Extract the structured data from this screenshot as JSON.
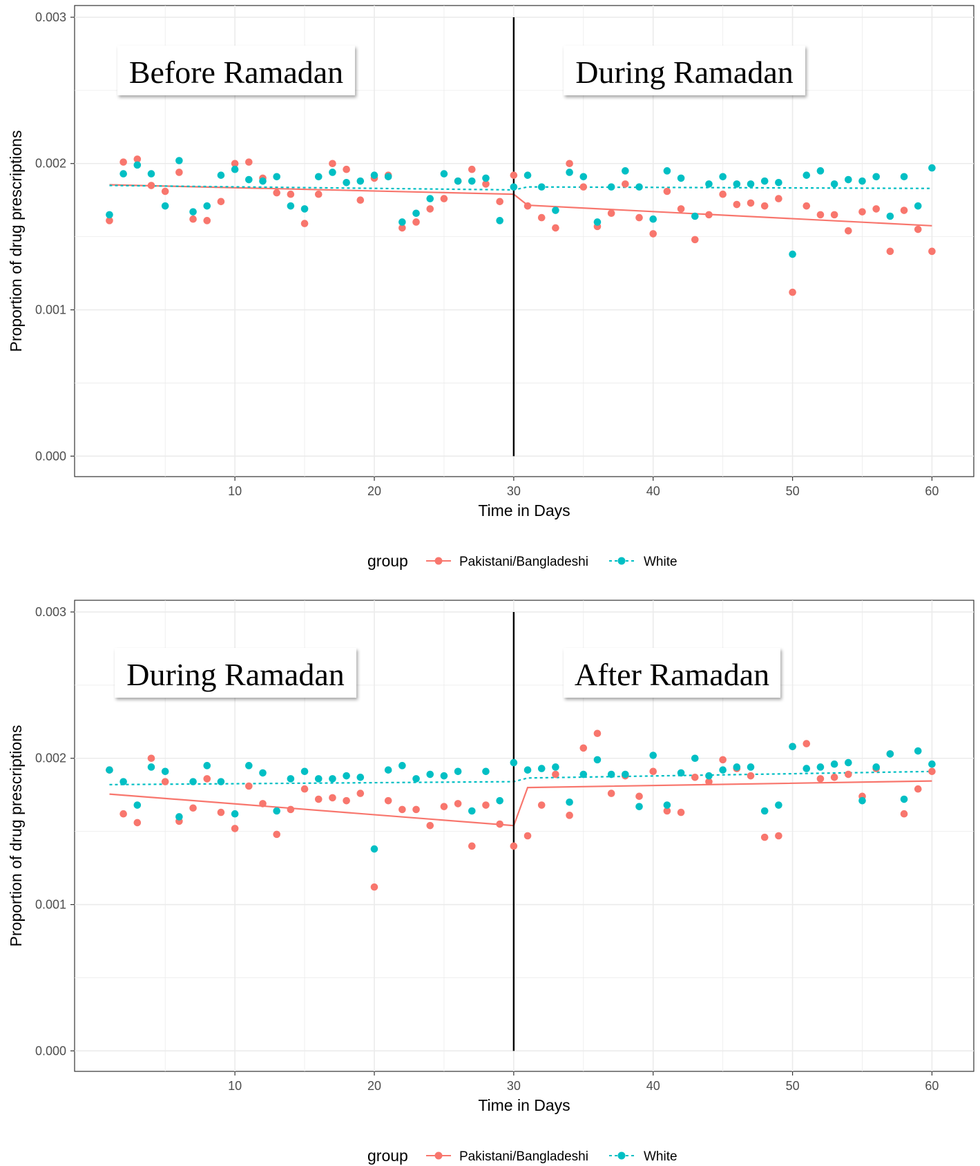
{
  "chart_data": [
    {
      "type": "scatter",
      "title": "",
      "xlabel": "Time in Days",
      "ylabel": "Proportion of drug prescriptions",
      "xlim": [
        -1.5,
        63
      ],
      "ylim": [
        -0.00014,
        0.00308
      ],
      "x_ticks": [
        10,
        20,
        30,
        40,
        50,
        60
      ],
      "y_ticks": [
        0,
        0.001,
        0.002,
        0.003
      ],
      "y_tick_labels": [
        "0.000",
        "0.001",
        "0.002",
        "0.003"
      ],
      "grid": true,
      "intervention_x": 30,
      "panel_labels": {
        "left": "Before Ramadan",
        "right": "During Ramadan"
      },
      "legend": {
        "position": "bottom",
        "title": "group",
        "entries": [
          "Pakistani/Bangladeshi",
          "White"
        ]
      },
      "colors": {
        "Pakistani/Bangladeshi": "#F8766D",
        "White": "#00BFC4"
      },
      "series": [
        {
          "name": "Pakistani/Bangladeshi",
          "x": [
            1,
            2,
            3,
            4,
            5,
            6,
            7,
            8,
            9,
            10,
            11,
            12,
            13,
            14,
            15,
            16,
            17,
            18,
            19,
            20,
            21,
            22,
            23,
            24,
            25,
            26,
            27,
            28,
            29,
            30,
            31,
            32,
            33,
            34,
            35,
            36,
            37,
            38,
            39,
            40,
            41,
            42,
            43,
            44,
            45,
            46,
            47,
            48,
            49,
            50,
            51,
            52,
            53,
            54,
            55,
            56,
            57,
            58,
            59,
            60
          ],
          "y": [
            0.00161,
            0.00201,
            0.00203,
            0.00185,
            0.00181,
            0.00194,
            0.00162,
            0.00161,
            0.00174,
            0.002,
            0.00201,
            0.0019,
            0.0018,
            0.00179,
            0.00159,
            0.00179,
            0.002,
            0.00196,
            0.00175,
            0.0019,
            0.00192,
            0.00156,
            0.0016,
            0.00169,
            0.00176,
            0.00188,
            0.00196,
            0.00186,
            0.00174,
            0.00192,
            0.00171,
            0.00163,
            0.00156,
            0.002,
            0.00184,
            0.00157,
            0.00166,
            0.00186,
            0.00163,
            0.00152,
            0.00181,
            0.00169,
            0.00148,
            0.00165,
            0.00179,
            0.00172,
            0.00173,
            0.00171,
            0.00176,
            0.00112,
            0.00171,
            0.00165,
            0.00165,
            0.00154,
            0.00167,
            0.00169,
            0.0014,
            0.00168,
            0.00155,
            0.0014
          ],
          "fit": [
            [
              1,
              0.001855
            ],
            [
              30,
              0.00179
            ],
            [
              31,
              0.001715
            ],
            [
              60,
              0.001575
            ]
          ]
        },
        {
          "name": "White",
          "x": [
            1,
            2,
            3,
            4,
            5,
            6,
            7,
            8,
            9,
            10,
            11,
            12,
            13,
            14,
            15,
            16,
            17,
            18,
            19,
            20,
            21,
            22,
            23,
            24,
            25,
            26,
            27,
            28,
            29,
            30,
            31,
            32,
            33,
            34,
            35,
            36,
            37,
            38,
            39,
            40,
            41,
            42,
            43,
            44,
            45,
            46,
            47,
            48,
            49,
            50,
            51,
            52,
            53,
            54,
            55,
            56,
            57,
            58,
            59,
            60
          ],
          "y": [
            0.00165,
            0.00193,
            0.00199,
            0.00193,
            0.00171,
            0.00202,
            0.00167,
            0.00171,
            0.00192,
            0.00196,
            0.00189,
            0.00188,
            0.00191,
            0.00171,
            0.00169,
            0.00191,
            0.00194,
            0.00187,
            0.00188,
            0.00192,
            0.00191,
            0.0016,
            0.00166,
            0.00176,
            0.00193,
            0.00188,
            0.00188,
            0.0019,
            0.00161,
            0.00184,
            0.00192,
            0.00184,
            0.00168,
            0.00194,
            0.00191,
            0.0016,
            0.00184,
            0.00195,
            0.00184,
            0.00162,
            0.00195,
            0.0019,
            0.00164,
            0.00186,
            0.00191,
            0.00186,
            0.00186,
            0.00188,
            0.00187,
            0.00138,
            0.00192,
            0.00195,
            0.00186,
            0.00189,
            0.00188,
            0.00191,
            0.00164,
            0.00191,
            0.00171,
            0.00197
          ],
          "fit": [
            [
              1,
              0.00185
            ],
            [
              30,
              0.00182
            ],
            [
              31,
              0.00184
            ],
            [
              60,
              0.00183
            ]
          ]
        }
      ]
    },
    {
      "type": "scatter",
      "title": "",
      "xlabel": "Time in Days",
      "ylabel": "Proportion of drug prescriptions",
      "xlim": [
        -1.5,
        63
      ],
      "ylim": [
        -0.00014,
        0.00308
      ],
      "x_ticks": [
        10,
        20,
        30,
        40,
        50,
        60
      ],
      "y_ticks": [
        0,
        0.001,
        0.002,
        0.003
      ],
      "y_tick_labels": [
        "0.000",
        "0.001",
        "0.002",
        "0.003"
      ],
      "grid": true,
      "intervention_x": 30,
      "panel_labels": {
        "left": "During Ramadan",
        "right": "After Ramadan"
      },
      "legend": {
        "position": "bottom",
        "title": "group",
        "entries": [
          "Pakistani/Bangladeshi",
          "White"
        ]
      },
      "colors": {
        "Pakistani/Bangladeshi": "#F8766D",
        "White": "#00BFC4"
      },
      "series": [
        {
          "name": "Pakistani/Bangladeshi",
          "x": [
            1,
            2,
            3,
            4,
            5,
            6,
            7,
            8,
            9,
            10,
            11,
            12,
            13,
            14,
            15,
            16,
            17,
            18,
            19,
            20,
            21,
            22,
            23,
            24,
            25,
            26,
            27,
            28,
            29,
            30,
            31,
            32,
            33,
            34,
            35,
            36,
            37,
            38,
            39,
            40,
            41,
            42,
            43,
            44,
            45,
            46,
            47,
            48,
            49,
            50,
            51,
            52,
            53,
            54,
            55,
            56,
            57,
            58,
            59,
            60
          ],
          "y": [
            0.00192,
            0.00162,
            0.00156,
            0.002,
            0.00184,
            0.00157,
            0.00166,
            0.00186,
            0.00163,
            0.00152,
            0.00181,
            0.00169,
            0.00148,
            0.00165,
            0.00179,
            0.00172,
            0.00173,
            0.00171,
            0.00176,
            0.00112,
            0.00171,
            0.00165,
            0.00165,
            0.00154,
            0.00167,
            0.00169,
            0.0014,
            0.00168,
            0.00155,
            0.0014,
            0.00147,
            0.00168,
            0.00189,
            0.00161,
            0.00207,
            0.00217,
            0.00176,
            0.00188,
            0.00174,
            0.00191,
            0.00164,
            0.00163,
            0.00187,
            0.00184,
            0.00199,
            0.00193,
            0.00188,
            0.00146,
            0.00147,
            0.00208,
            0.0021,
            0.00186,
            0.00187,
            0.00189,
            0.00174,
            0.00193,
            0.00203,
            0.00162,
            0.00179,
            0.00191
          ],
          "fit": [
            [
              1,
              0.001755
            ],
            [
              30,
              0.00154
            ],
            [
              31,
              0.0018
            ],
            [
              60,
              0.001845
            ]
          ]
        },
        {
          "name": "White",
          "x": [
            1,
            2,
            3,
            4,
            5,
            6,
            7,
            8,
            9,
            10,
            11,
            12,
            13,
            14,
            15,
            16,
            17,
            18,
            19,
            20,
            21,
            22,
            23,
            24,
            25,
            26,
            27,
            28,
            29,
            30,
            31,
            32,
            33,
            34,
            35,
            36,
            37,
            38,
            39,
            40,
            41,
            42,
            43,
            44,
            45,
            46,
            47,
            48,
            49,
            50,
            51,
            52,
            53,
            54,
            55,
            56,
            57,
            58,
            59,
            60
          ],
          "y": [
            0.00192,
            0.00184,
            0.00168,
            0.00194,
            0.00191,
            0.0016,
            0.00184,
            0.00195,
            0.00184,
            0.00162,
            0.00195,
            0.0019,
            0.00164,
            0.00186,
            0.00191,
            0.00186,
            0.00186,
            0.00188,
            0.00187,
            0.00138,
            0.00192,
            0.00195,
            0.00186,
            0.00189,
            0.00188,
            0.00191,
            0.00164,
            0.00191,
            0.00171,
            0.00197,
            0.00192,
            0.00193,
            0.00194,
            0.0017,
            0.00189,
            0.00199,
            0.00189,
            0.00189,
            0.00167,
            0.00202,
            0.00168,
            0.0019,
            0.002,
            0.00188,
            0.00192,
            0.00194,
            0.00194,
            0.00164,
            0.00168,
            0.00208,
            0.00193,
            0.00194,
            0.00196,
            0.00197,
            0.00171,
            0.00194,
            0.00203,
            0.00172,
            0.00205,
            0.00196
          ],
          "fit": [
            [
              1,
              0.00182
            ],
            [
              30,
              0.00184
            ],
            [
              31,
              0.001865
            ],
            [
              60,
              0.00191
            ]
          ]
        }
      ]
    }
  ]
}
